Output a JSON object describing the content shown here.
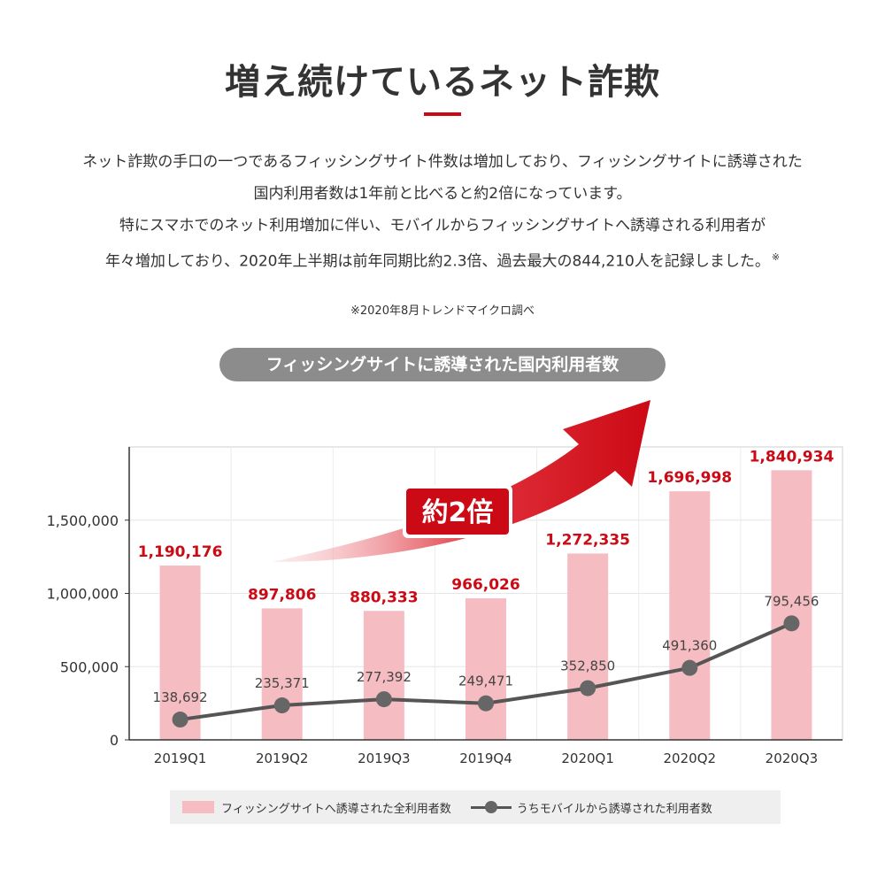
{
  "header": {
    "title": "増え続けているネット詐欺",
    "paragraph": [
      "ネット詐欺の手口の一つであるフィッシングサイト件数は増加しており、フィッシングサイトに誘導された",
      "国内利用者数は1年前と比べると約2倍になっています。",
      "特にスマホでのネット利用増加に伴い、モバイルからフィッシングサイトへ誘導される利用者が",
      "年々増加しており、2020年上半期は前年同期比約2.3倍、過去最大の844,210人を記録しました。"
    ],
    "footnote_mark": "※",
    "note": "※2020年8月トレンドマイクロ調べ"
  },
  "chart_data": {
    "type": "bar",
    "title": "フィッシングサイトに誘導された国内利用者数",
    "categories": [
      "2019Q1",
      "2019Q2",
      "2019Q3",
      "2019Q4",
      "2020Q1",
      "2020Q2",
      "2020Q3"
    ],
    "series": [
      {
        "name": "フィッシングサイトへ誘導された全利用者数",
        "kind": "bar",
        "color": "#f5bcc1",
        "values": [
          1190176,
          897806,
          880333,
          966026,
          1272335,
          1696998,
          1840934
        ],
        "labels": [
          "1,190,176",
          "897,806",
          "880,333",
          "966,026",
          "1,272,335",
          "1,696,998",
          "1,840,934"
        ]
      },
      {
        "name": "うちモバイルから誘導された利用者数",
        "kind": "line",
        "color": "#666666",
        "values": [
          138692,
          235371,
          277392,
          249471,
          352850,
          491360,
          795456
        ],
        "labels": [
          "138,692",
          "235,371",
          "277,392",
          "249,471",
          "352,850",
          "491,360",
          "795,456"
        ]
      }
    ],
    "yticks": [
      {
        "value": 0,
        "label": "0"
      },
      {
        "value": 500000,
        "label": "500,000"
      },
      {
        "value": 1000000,
        "label": "1,000,000"
      },
      {
        "value": 1500000,
        "label": "1,500,000"
      }
    ],
    "ylim": [
      0,
      2000000
    ],
    "grid": true,
    "legend_position": "bottom",
    "annotation": "約2倍",
    "colors": {
      "accent": "#cc0a15",
      "bar": "#f5bcc1",
      "line": "#555555"
    }
  }
}
